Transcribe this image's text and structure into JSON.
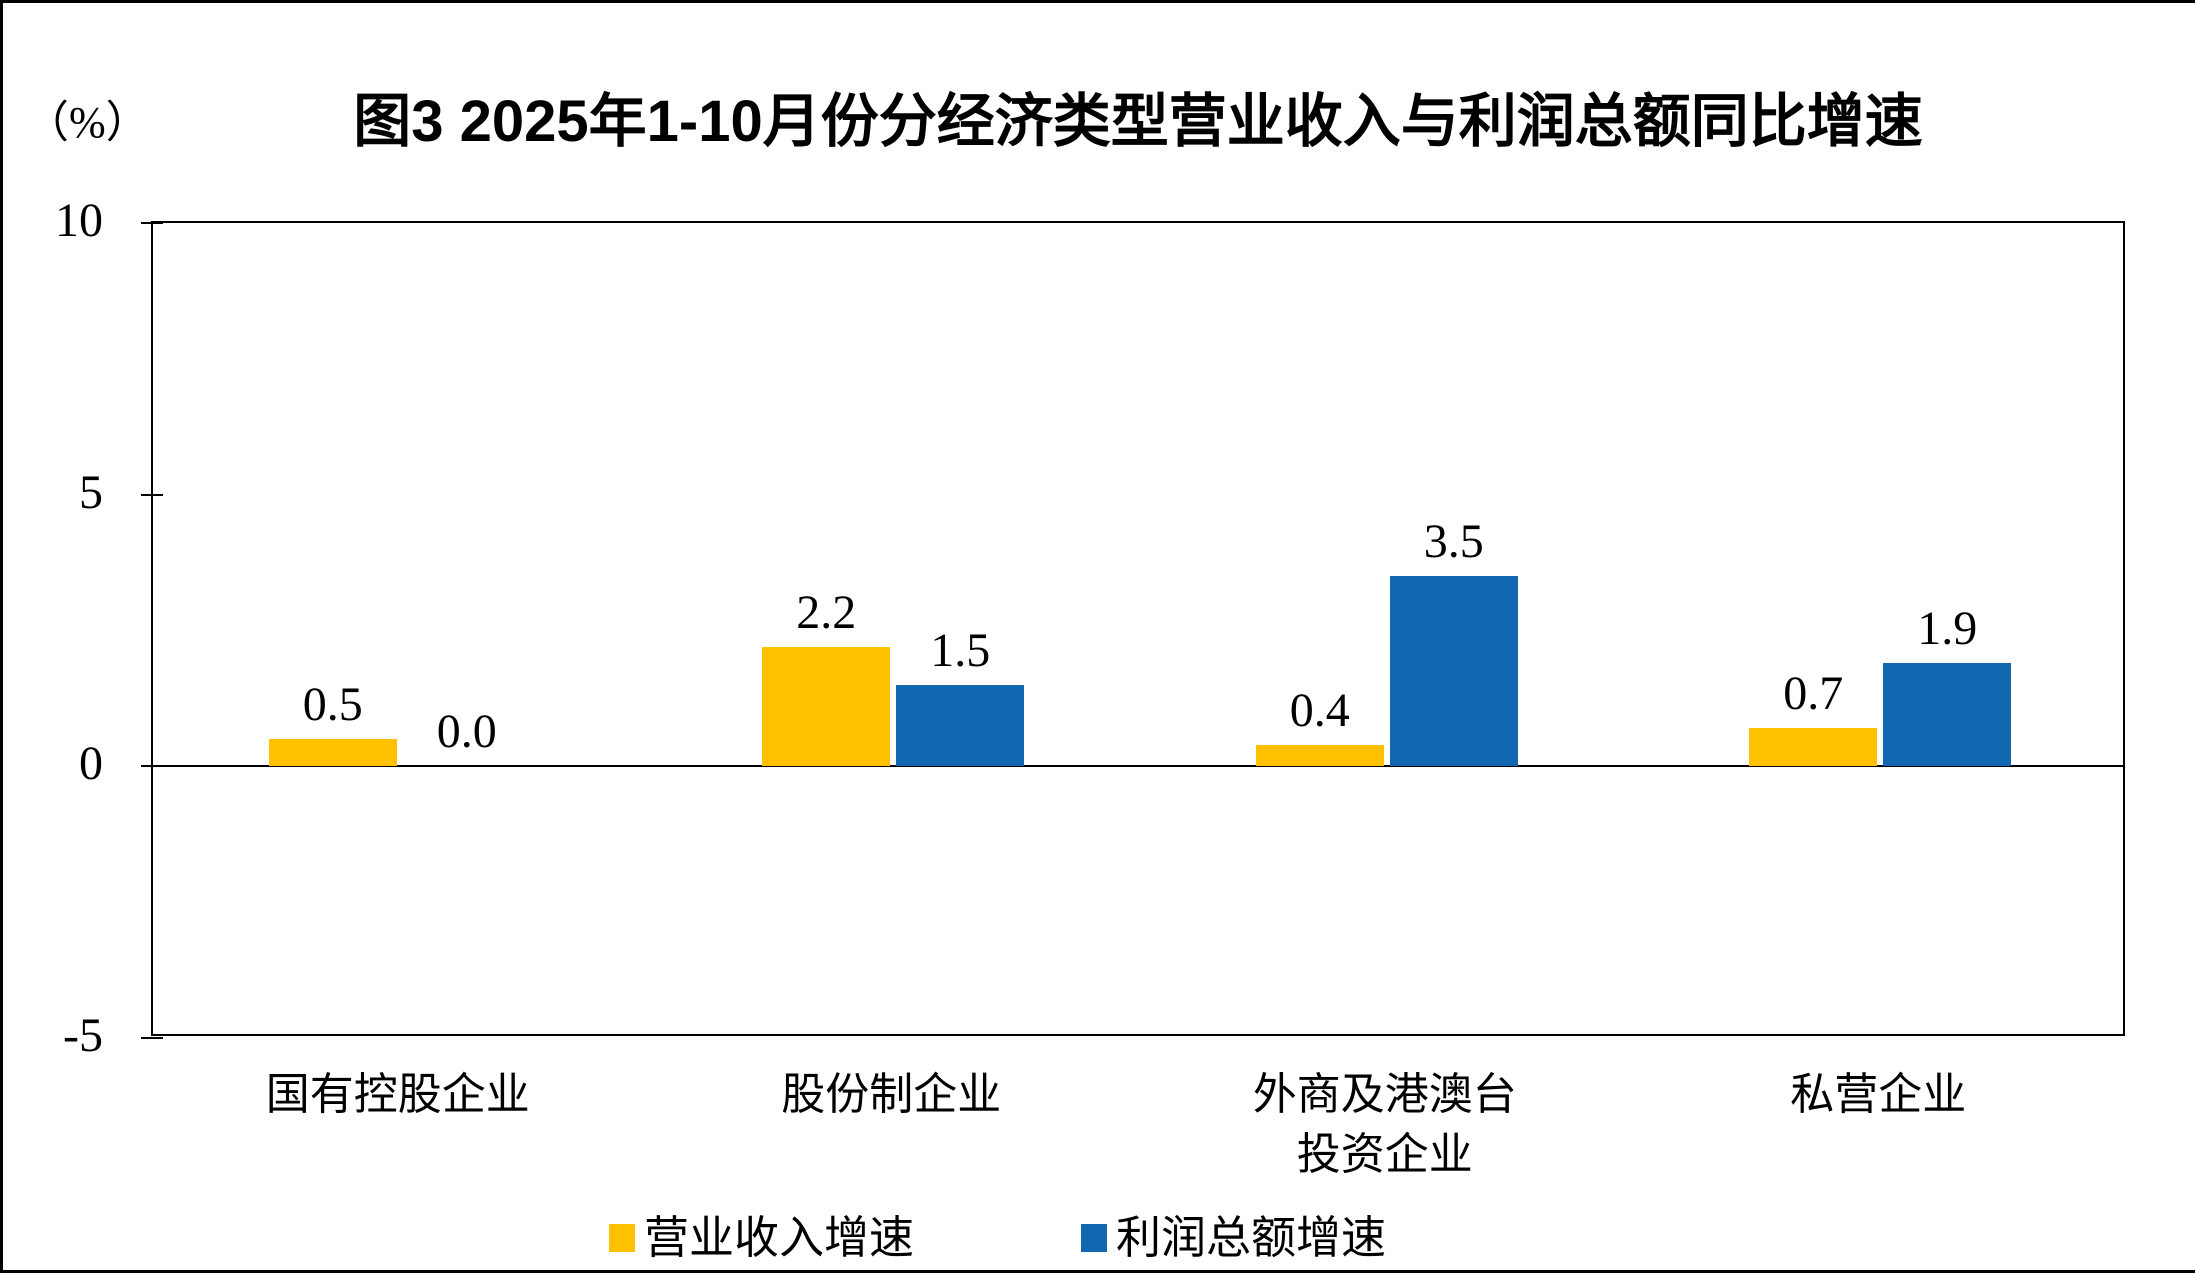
{
  "title": "图3  2025年1-10月份分经济类型营业收入与利润总额同比增速",
  "y_axis": {
    "unit": "（%）",
    "ticks": [
      "10",
      "5",
      "0",
      "-5"
    ],
    "tick_values": [
      10,
      5,
      0,
      -5
    ],
    "max": 10,
    "min": -5
  },
  "legend": {
    "items": [
      {
        "label": "营业收入增速",
        "color": "#FFC000"
      },
      {
        "label": "利润总额增速",
        "color": "#1168B0"
      }
    ]
  },
  "chart_data": {
    "type": "bar",
    "title": "图3  2025年1-10月份分经济类型营业收入与利润总额同比增速",
    "categories": [
      "国有控股企业",
      "股份制企业",
      "外商及港澳台投资企业",
      "私营企业"
    ],
    "category_lines": [
      [
        "国有控股企业"
      ],
      [
        "股份制企业"
      ],
      [
        "外商及港澳台",
        "投资企业"
      ],
      [
        "私营企业"
      ]
    ],
    "series": [
      {
        "name": "营业收入增速",
        "color": "#FFC000",
        "values": [
          0.5,
          2.2,
          0.4,
          0.7
        ]
      },
      {
        "name": "利润总额增速",
        "color": "#1168B0",
        "values": [
          0.0,
          1.5,
          3.5,
          1.9
        ]
      }
    ],
    "data_labels": [
      [
        "0.5",
        "2.2",
        "0.4",
        "0.7"
      ],
      [
        "0.0",
        "1.5",
        "3.5",
        "1.9"
      ]
    ],
    "xlabel": "",
    "ylabel": "（%）",
    "ylim": [
      -5,
      10
    ],
    "ytick_step": 5,
    "grid": false,
    "legend_position": "bottom"
  }
}
